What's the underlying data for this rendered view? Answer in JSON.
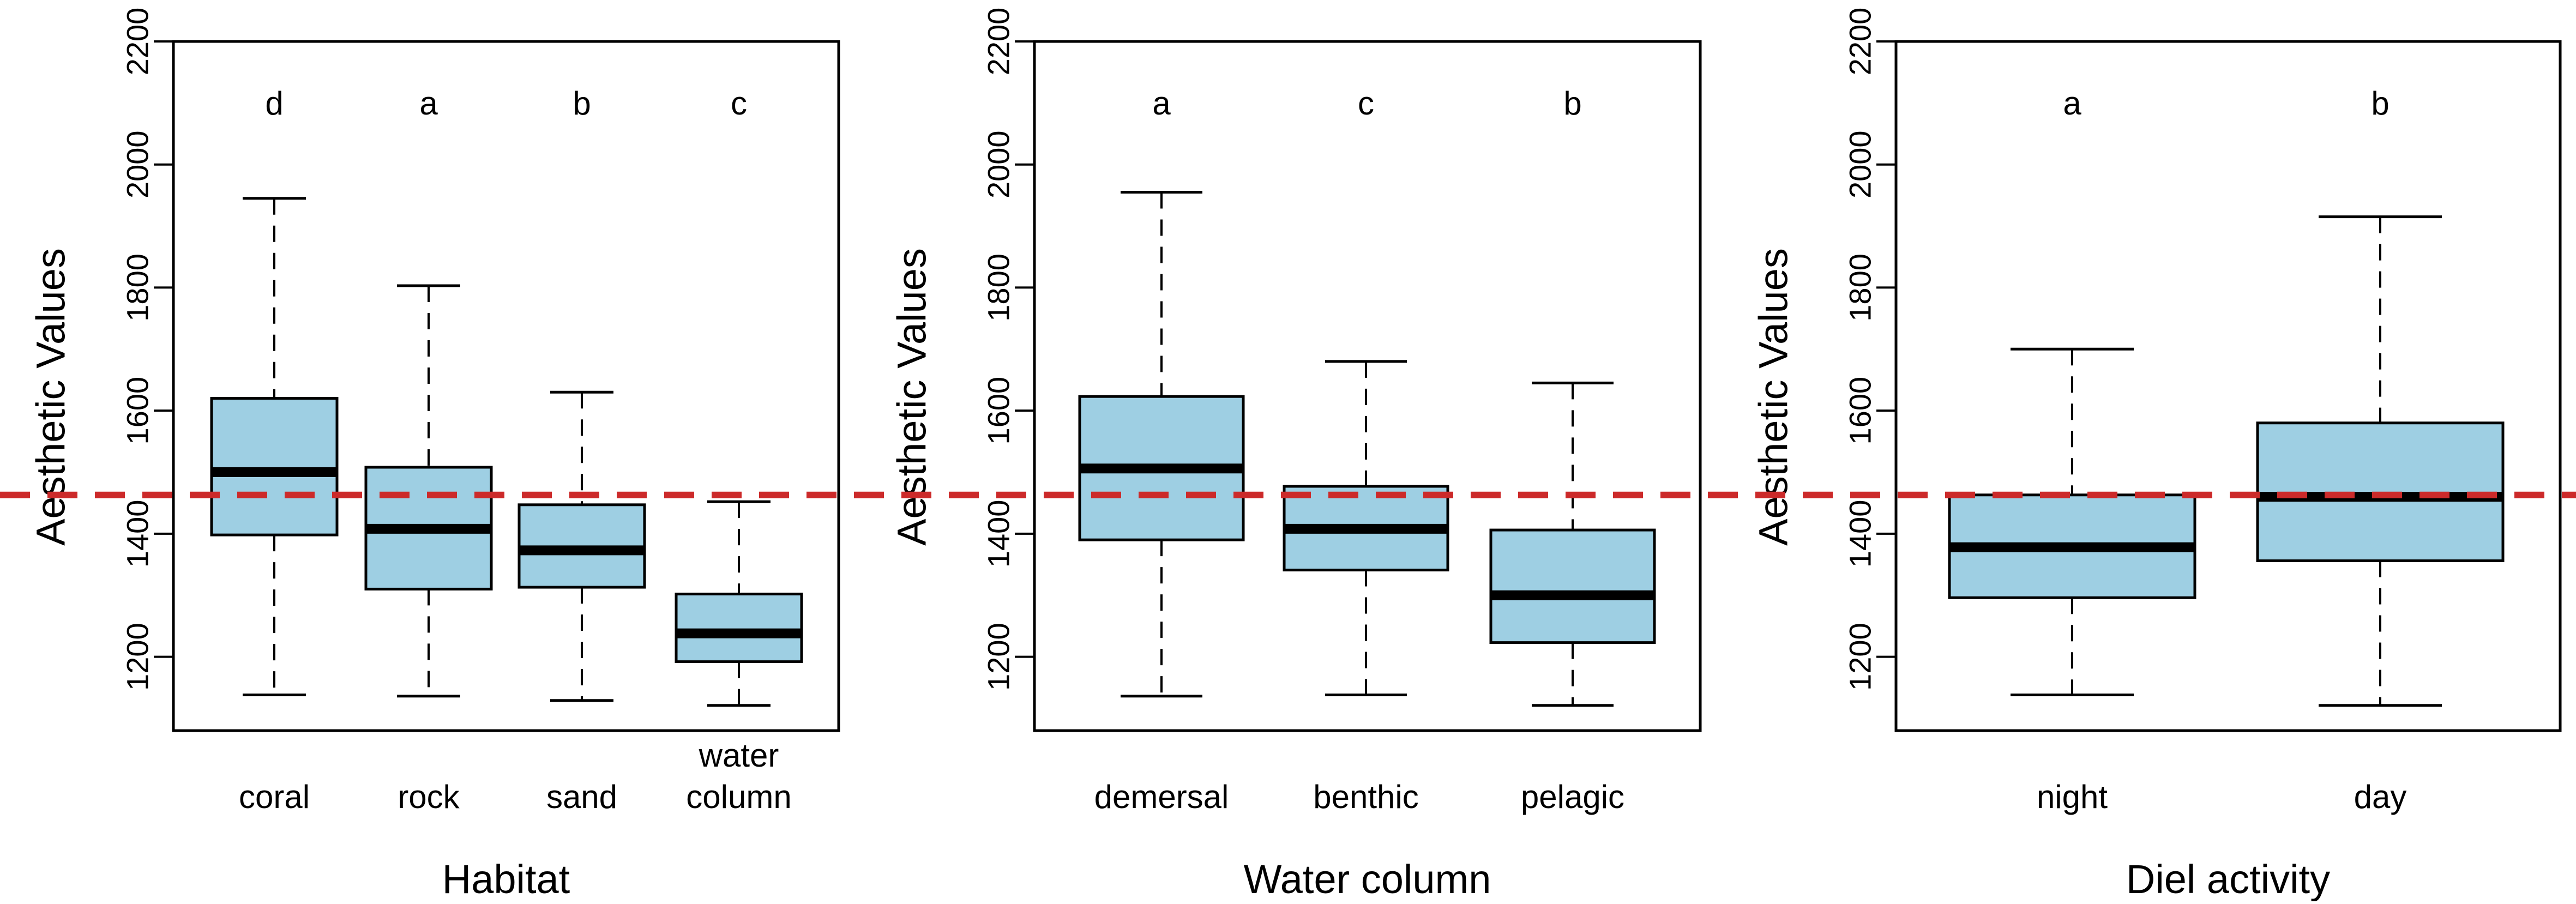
{
  "colors": {
    "box_fill": "#9ecfe3",
    "box_stroke": "#000000",
    "reference_line": "#cc2a2a"
  },
  "chart_data": [
    {
      "type": "box",
      "title": "",
      "xlabel": "Habitat",
      "ylabel": "Aesthetic Values",
      "ylim": [
        1080,
        2200
      ],
      "yticks": [
        1200,
        1400,
        1600,
        1800,
        2000,
        2200
      ],
      "reference_line": 1463,
      "categories": [
        {
          "label": [
            "coral"
          ],
          "group": "d",
          "min": 1138,
          "q1": 1398,
          "median": 1500,
          "q3": 1620,
          "max": 1945
        },
        {
          "label": [
            "rock"
          ],
          "group": "a",
          "min": 1136,
          "q1": 1310,
          "median": 1408,
          "q3": 1508,
          "max": 1803
        },
        {
          "label": [
            "sand"
          ],
          "group": "b",
          "min": 1129,
          "q1": 1313,
          "median": 1373,
          "q3": 1447,
          "max": 1630
        },
        {
          "label": [
            "water",
            "column"
          ],
          "group": "c",
          "min": 1121,
          "q1": 1192,
          "median": 1238,
          "q3": 1302,
          "max": 1452
        }
      ]
    },
    {
      "type": "box",
      "title": "",
      "xlabel": "Water column",
      "ylabel": "Aesthetic Values",
      "ylim": [
        1080,
        2200
      ],
      "yticks": [
        1200,
        1400,
        1600,
        1800,
        2000,
        2200
      ],
      "reference_line": 1463,
      "categories": [
        {
          "label": [
            "demersal"
          ],
          "group": "a",
          "min": 1136,
          "q1": 1390,
          "median": 1506,
          "q3": 1623,
          "max": 1955
        },
        {
          "label": [
            "benthic"
          ],
          "group": "c",
          "min": 1138,
          "q1": 1341,
          "median": 1408,
          "q3": 1477,
          "max": 1680
        },
        {
          "label": [
            "pelagic"
          ],
          "group": "b",
          "min": 1121,
          "q1": 1223,
          "median": 1300,
          "q3": 1406,
          "max": 1645
        }
      ]
    },
    {
      "type": "box",
      "title": "",
      "xlabel": "Diel activity",
      "ylabel": "Aesthetic Values",
      "ylim": [
        1080,
        2200
      ],
      "yticks": [
        1200,
        1400,
        1600,
        1800,
        2000,
        2200
      ],
      "reference_line": 1463,
      "categories": [
        {
          "label": [
            "night"
          ],
          "group": "a",
          "min": 1138,
          "q1": 1296,
          "median": 1378,
          "q3": 1463,
          "max": 1700
        },
        {
          "label": [
            "day"
          ],
          "group": "b",
          "min": 1121,
          "q1": 1356,
          "median": 1460,
          "q3": 1580,
          "max": 1915
        }
      ]
    }
  ]
}
